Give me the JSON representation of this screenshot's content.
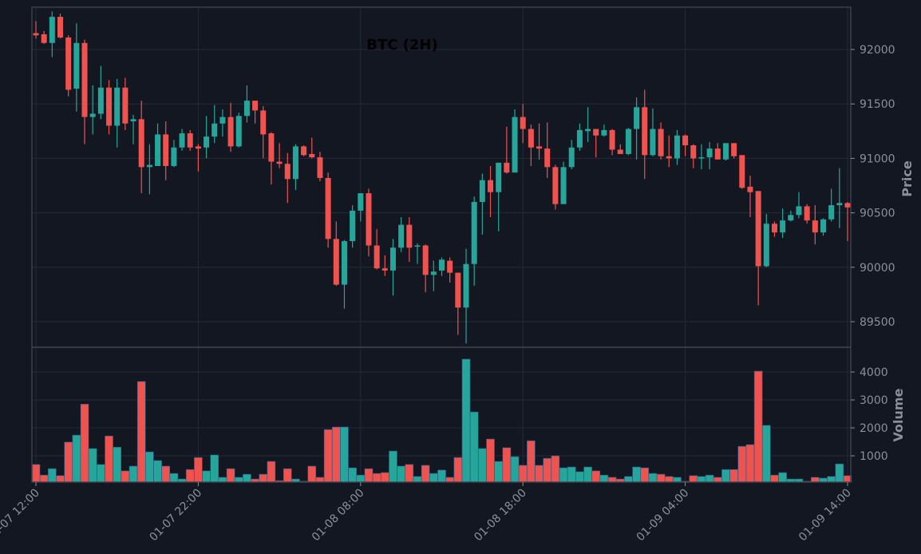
{
  "chart_data": {
    "type": "candlestick",
    "title": "BTC (2H)",
    "ylabel": "Price",
    "volume_label": "Volume",
    "price_ylim": [
      89270,
      92360
    ],
    "volume_ylim": [
      0,
      4800
    ],
    "price_ticks": [
      89500,
      90000,
      90500,
      91000,
      91500,
      92000
    ],
    "volume_ticks": [
      1000,
      2000,
      3000,
      4000
    ],
    "x_ticks": [
      {
        "index": 0,
        "label": "01-07 12:00"
      },
      {
        "index": 20,
        "label": "01-07 22:00"
      },
      {
        "index": 40,
        "label": "01-08 08:00"
      },
      {
        "index": 60,
        "label": "01-08 18:00"
      },
      {
        "index": 80,
        "label": "01-09 04:00"
      },
      {
        "index": 100,
        "label": "01-09 14:00"
      }
    ],
    "grid": true,
    "colors": {
      "up": "#26a69a",
      "down": "#ef5350",
      "background": "#131722",
      "grid": "#252a35",
      "border": "#3b404b"
    },
    "ohlcv": [
      [
        92150,
        92260,
        92100,
        92130,
        690
      ],
      [
        92140,
        92170,
        92050,
        92060,
        310
      ],
      [
        92060,
        92350,
        91930,
        92300,
        540
      ],
      [
        92300,
        92330,
        92100,
        92110,
        290
      ],
      [
        92110,
        92130,
        91570,
        91630,
        1490
      ],
      [
        91640,
        92240,
        91430,
        92060,
        1740
      ],
      [
        92060,
        92090,
        91130,
        91380,
        2850
      ],
      [
        91380,
        91670,
        91220,
        91410,
        1260
      ],
      [
        91410,
        91850,
        91360,
        91650,
        690
      ],
      [
        91650,
        91720,
        91220,
        91300,
        1710
      ],
      [
        91300,
        91730,
        91100,
        91650,
        1310
      ],
      [
        91650,
        91740,
        91260,
        91320,
        460
      ],
      [
        91340,
        91400,
        91130,
        91360,
        630
      ],
      [
        91360,
        91530,
        90680,
        90920,
        3660
      ],
      [
        90920,
        91130,
        90670,
        90940,
        1140
      ],
      [
        90930,
        91320,
        90930,
        91220,
        830
      ],
      [
        91220,
        91340,
        90800,
        90930,
        630
      ],
      [
        90930,
        91170,
        90920,
        91100,
        370
      ],
      [
        91100,
        91270,
        91070,
        91230,
        170
      ],
      [
        91230,
        91260,
        91070,
        91100,
        510
      ],
      [
        91110,
        91130,
        90880,
        91090,
        940
      ],
      [
        91100,
        91390,
        91000,
        91200,
        460
      ],
      [
        91200,
        91490,
        91140,
        91320,
        1030
      ],
      [
        91320,
        91450,
        91200,
        91380,
        230
      ],
      [
        91380,
        91510,
        91060,
        91110,
        540
      ],
      [
        91110,
        91420,
        91100,
        91390,
        230
      ],
      [
        91390,
        91670,
        91330,
        91530,
        340
      ],
      [
        91530,
        91530,
        91320,
        91440,
        170
      ],
      [
        91440,
        91480,
        91000,
        91220,
        340
      ],
      [
        91230,
        91240,
        90760,
        90970,
        800
      ],
      [
        90970,
        91140,
        90910,
        90950,
        110
      ],
      [
        90950,
        91050,
        90590,
        90810,
        540
      ],
      [
        90810,
        91130,
        90710,
        91110,
        170
      ],
      [
        91110,
        91120,
        91020,
        91030,
        90
      ],
      [
        91040,
        91190,
        91000,
        91010,
        630
      ],
      [
        91010,
        91060,
        90790,
        90820,
        230
      ],
      [
        90820,
        90870,
        90180,
        90260,
        1940
      ],
      [
        90260,
        90420,
        89830,
        89840,
        2030
      ],
      [
        89840,
        90250,
        89620,
        90240,
        2030
      ],
      [
        90240,
        90570,
        90180,
        90520,
        570
      ],
      [
        90520,
        90680,
        90420,
        90680,
        310
      ],
      [
        90680,
        90720,
        90100,
        90200,
        540
      ],
      [
        90200,
        90350,
        89980,
        89990,
        370
      ],
      [
        89990,
        90110,
        89920,
        89970,
        400
      ],
      [
        89970,
        90260,
        89740,
        90180,
        1170
      ],
      [
        90180,
        90460,
        90140,
        90390,
        630
      ],
      [
        90390,
        90460,
        90050,
        90180,
        690
      ],
      [
        90190,
        90220,
        90030,
        90200,
        260
      ],
      [
        90200,
        90210,
        89770,
        89930,
        660
      ],
      [
        89930,
        90060,
        89780,
        89960,
        370
      ],
      [
        89970,
        90090,
        89920,
        90070,
        490
      ],
      [
        90060,
        90090,
        89860,
        89950,
        230
      ],
      [
        89950,
        89950,
        89380,
        89630,
        940
      ],
      [
        89630,
        90170,
        89300,
        90030,
        4460
      ],
      [
        90030,
        90650,
        89830,
        90600,
        2570
      ],
      [
        90600,
        90860,
        90300,
        90800,
        1260
      ],
      [
        90800,
        90930,
        90460,
        90690,
        1600
      ],
      [
        90690,
        90960,
        90330,
        90960,
        800
      ],
      [
        90960,
        91290,
        90860,
        90870,
        1290
      ],
      [
        90870,
        91450,
        90870,
        91380,
        970
      ],
      [
        91380,
        91500,
        91140,
        91270,
        660
      ],
      [
        91270,
        91310,
        90930,
        91100,
        1540
      ],
      [
        91110,
        91320,
        90990,
        91090,
        660
      ],
      [
        91090,
        91330,
        90820,
        90920,
        910
      ],
      [
        90920,
        90940,
        90530,
        90580,
        1000
      ],
      [
        90580,
        90970,
        90580,
        90920,
        570
      ],
      [
        90920,
        91170,
        90900,
        91100,
        600
      ],
      [
        91100,
        91320,
        91070,
        91260,
        430
      ],
      [
        91250,
        91470,
        91150,
        91270,
        600
      ],
      [
        91270,
        91270,
        91010,
        91210,
        460
      ],
      [
        91210,
        91310,
        91200,
        91260,
        310
      ],
      [
        91260,
        91270,
        91030,
        91080,
        230
      ],
      [
        91080,
        91130,
        91040,
        91040,
        170
      ],
      [
        91040,
        91280,
        91030,
        91270,
        260
      ],
      [
        91270,
        91560,
        90990,
        91470,
        600
      ],
      [
        91470,
        91630,
        90810,
        91030,
        570
      ],
      [
        91030,
        91460,
        91020,
        91270,
        370
      ],
      [
        91270,
        91330,
        90990,
        91020,
        340
      ],
      [
        91020,
        91210,
        90920,
        91000,
        260
      ],
      [
        91000,
        91260,
        90940,
        91210,
        230
      ],
      [
        91210,
        91220,
        91020,
        91120,
        90
      ],
      [
        91120,
        91130,
        90910,
        91000,
        290
      ],
      [
        91000,
        91130,
        90900,
        91010,
        260
      ],
      [
        91010,
        91150,
        90900,
        91090,
        310
      ],
      [
        91090,
        91140,
        90990,
        90990,
        230
      ],
      [
        90990,
        91140,
        90980,
        91140,
        510
      ],
      [
        91140,
        91140,
        91000,
        91020,
        510
      ],
      [
        91030,
        91030,
        90720,
        90730,
        1340
      ],
      [
        90740,
        90840,
        90460,
        90690,
        1400
      ],
      [
        90700,
        90700,
        89650,
        90010,
        4030
      ],
      [
        90010,
        90490,
        90000,
        90400,
        2090
      ],
      [
        90400,
        90420,
        90280,
        90320,
        310
      ],
      [
        90320,
        90540,
        90270,
        90430,
        400
      ],
      [
        90430,
        90520,
        90420,
        90480,
        170
      ],
      [
        90480,
        90690,
        90450,
        90560,
        170
      ],
      [
        90560,
        90580,
        90400,
        90430,
        90
      ],
      [
        90430,
        90570,
        90210,
        90320,
        230
      ],
      [
        90320,
        90450,
        90290,
        90440,
        200
      ],
      [
        90440,
        90720,
        90420,
        90570,
        260
      ],
      [
        90570,
        90910,
        90360,
        90590,
        710
      ],
      [
        90590,
        90600,
        90240,
        90550,
        290
      ]
    ]
  }
}
